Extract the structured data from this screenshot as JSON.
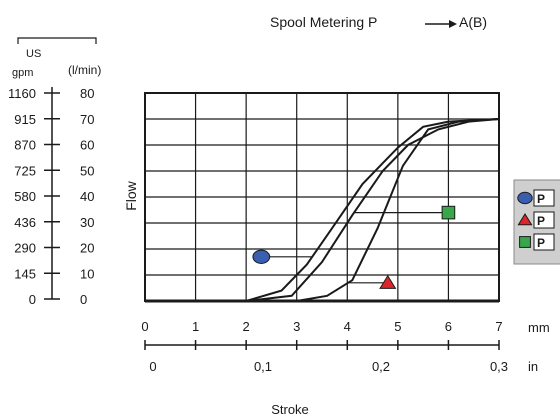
{
  "chart_data": {
    "type": "line",
    "title": "Spool Metering P",
    "title_suffix": "A(B)",
    "ylabel": "Flow",
    "xlabel": "Stroke",
    "x_unit_mm": "mm",
    "x_unit_in": "in",
    "x_mm_ticks": [
      "0",
      "1",
      "2",
      "3",
      "4",
      "5",
      "6",
      "7"
    ],
    "x_in_ticks": [
      "0",
      "0,1",
      "0,2",
      "0,3"
    ],
    "x_in_values": [
      0,
      0.1,
      0.2,
      0.3
    ],
    "xlim_mm": [
      0,
      7
    ],
    "ylim_lmin": [
      0,
      80
    ],
    "y_unit_lmin": "(l/min)",
    "y_unit_us_top": "US",
    "y_unit_us_bottom": "gpm",
    "y_lmin_ticks": [
      "0",
      "10",
      "20",
      "30",
      "40",
      "50",
      "60",
      "70",
      "80"
    ],
    "y_gpm_ticks": [
      "0",
      "145",
      "290",
      "436",
      "580",
      "725",
      "870",
      "915",
      "1160"
    ],
    "grid": true,
    "legend_position": "right",
    "legend_entries": [
      {
        "label": "P",
        "marker": "circle",
        "color": "#3a5fb0"
      },
      {
        "label": "P",
        "marker": "triangle",
        "color": "#d8262b"
      },
      {
        "label": "P",
        "marker": "square",
        "color": "#3aa64a"
      }
    ],
    "series": [
      {
        "marker": "circle",
        "marker_point": [
          2.3,
          17
        ],
        "x": [
          0,
          2,
          2.7,
          3.2,
          3.7,
          4.3,
          5,
          5.5,
          6,
          7
        ],
        "y": [
          0,
          0,
          4,
          14,
          28,
          45,
          59,
          67,
          69,
          70
        ]
      },
      {
        "marker": "triangle",
        "marker_point": [
          4.8,
          7
        ],
        "x": [
          0,
          2,
          3,
          3.6,
          4.1,
          4.6,
          5.1,
          5.6,
          6.2,
          7
        ],
        "y": [
          0,
          0,
          0,
          2,
          8,
          28,
          52,
          66,
          69,
          70
        ]
      },
      {
        "marker": "square",
        "marker_point": [
          6,
          34
        ],
        "x": [
          0,
          2,
          2.9,
          3.5,
          4.1,
          4.7,
          5.2,
          5.8,
          6.4,
          7
        ],
        "y": [
          0,
          0,
          2,
          15,
          33,
          50,
          60,
          66,
          69,
          70
        ]
      }
    ]
  }
}
